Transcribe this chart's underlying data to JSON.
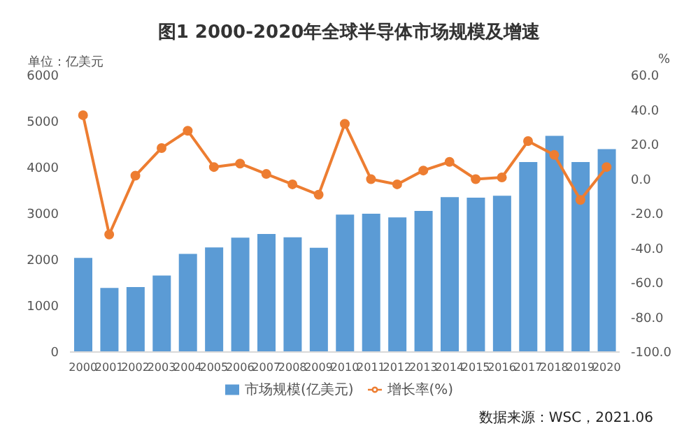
{
  "chart_data": {
    "type": "bar",
    "title": "图1 2000-2020年全球半导体市场规模及增速",
    "ylabel": "单位：亿美元",
    "y2label": "%",
    "categories": [
      "2000",
      "2001",
      "2002",
      "2003",
      "2004",
      "2005",
      "2006",
      "2007",
      "2008",
      "2009",
      "2010",
      "2011",
      "2012",
      "2013",
      "2014",
      "2015",
      "2016",
      "2017",
      "2018",
      "2019",
      "2020"
    ],
    "series": [
      {
        "name": "市场规模(亿美元)",
        "color": "#5b9bd5",
        "values": [
          2040,
          1390,
          1410,
          1660,
          2130,
          2270,
          2480,
          2560,
          2490,
          2260,
          2980,
          3000,
          2920,
          3060,
          3360,
          3350,
          3390,
          4120,
          4690,
          4120,
          4400
        ]
      },
      {
        "name": "增长率(%)",
        "type": "line",
        "axis": "y2",
        "color": "#ed7d31",
        "values": [
          37,
          -32,
          2,
          18,
          28,
          7,
          9,
          3,
          -3,
          -9,
          32,
          0,
          -3,
          5,
          10,
          0,
          1,
          22,
          14,
          -12,
          7
        ]
      }
    ],
    "ylim": [
      0,
      6000
    ],
    "yticks": [
      0,
      1000,
      2000,
      3000,
      4000,
      5000,
      6000
    ],
    "y2lim": [
      -100,
      60
    ],
    "y2ticks": [
      {
        "value": -100,
        "label": "-100.0"
      },
      {
        "value": -80,
        "label": "-80.0"
      },
      {
        "value": -60,
        "label": "-60.0"
      },
      {
        "value": -40,
        "label": "-40.0"
      },
      {
        "value": -20,
        "label": "-20.0"
      },
      {
        "value": 0,
        "label": "0.0"
      },
      {
        "value": 20,
        "label": "20.0"
      },
      {
        "value": 40,
        "label": "40.0"
      },
      {
        "value": 60,
        "label": "60.0"
      }
    ],
    "grid": false,
    "legend": "bottom",
    "marker": "circle",
    "annotations": [
      "数据来源：WSC，2021.06"
    ]
  }
}
